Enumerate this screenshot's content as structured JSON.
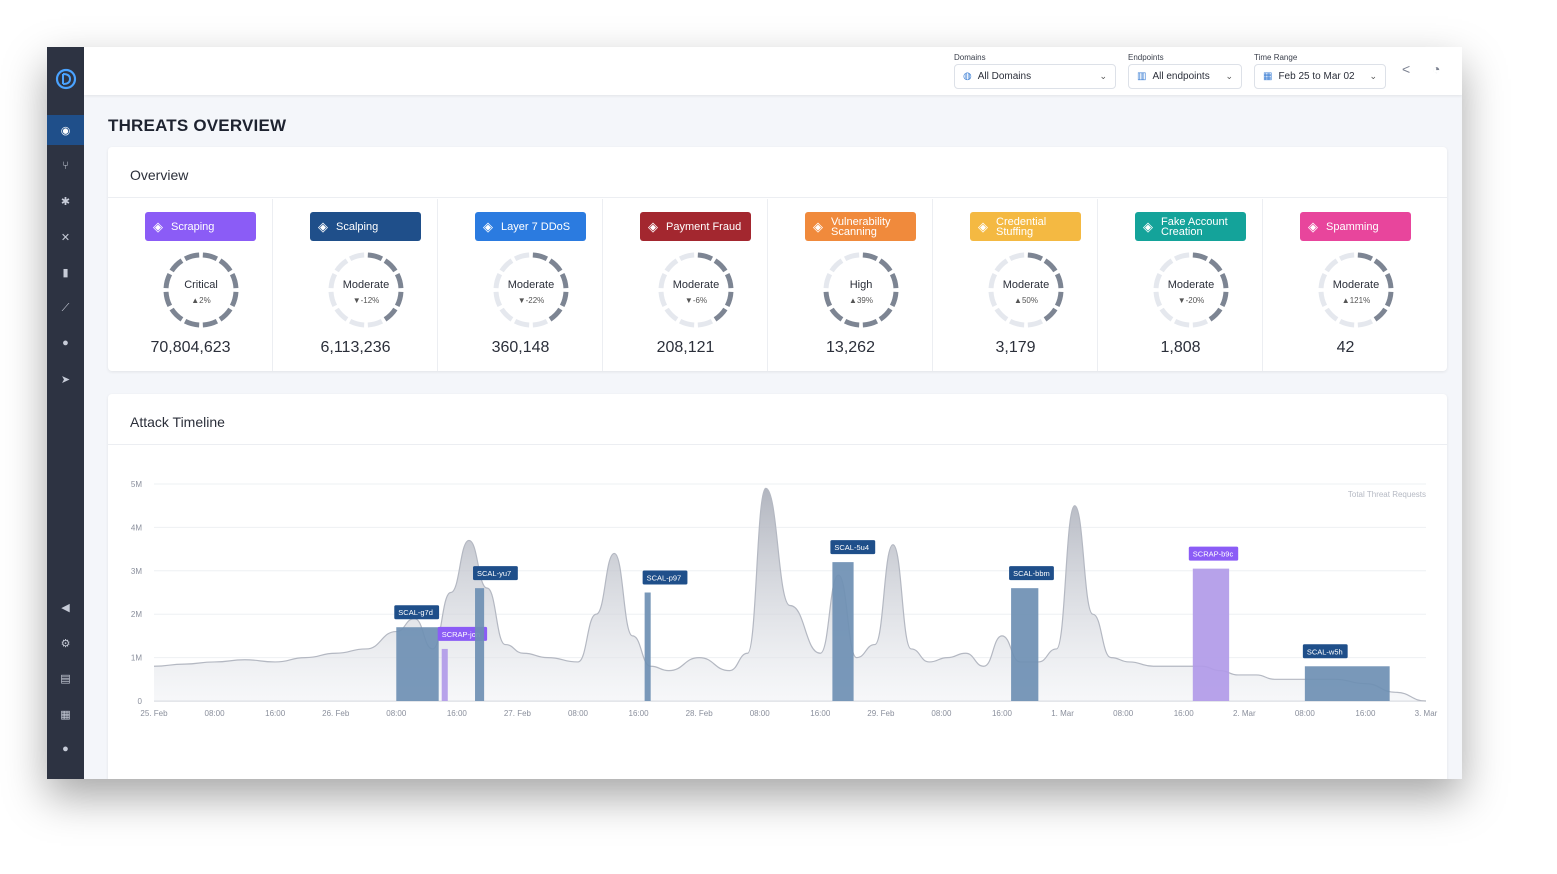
{
  "topbar": {
    "domains": {
      "label": "Domains",
      "value": "All Domains",
      "icon": "globe-icon"
    },
    "endpoints": {
      "label": "Endpoints",
      "value": "All endpoints",
      "icon": "endpoint-icon"
    },
    "time_range": {
      "label": "Time Range",
      "value": "Feb 25 to Mar 02",
      "icon": "calendar-icon"
    }
  },
  "page": {
    "title": "THREATS OVERVIEW"
  },
  "overview": {
    "title": "Overview",
    "threats": [
      {
        "name": "Scraping",
        "color": "#8b5cf6",
        "icon": "scraping-icon",
        "severity": "Critical",
        "change": "▲2%",
        "count": "70,804,623",
        "level": 1.0
      },
      {
        "name": "Scalping",
        "color": "#1f4f8a",
        "icon": "cart-icon",
        "severity": "Moderate",
        "change": "▼-12%",
        "count": "6,113,236",
        "level": 0.4
      },
      {
        "name": "Layer 7 DDoS",
        "color": "#2b7be0",
        "icon": "network-icon",
        "severity": "Moderate",
        "change": "▼-22%",
        "count": "360,148",
        "level": 0.4
      },
      {
        "name": "Payment Fraud",
        "color": "#a3272f",
        "icon": "wallet-icon",
        "severity": "Moderate",
        "change": "▼-6%",
        "count": "208,121",
        "level": 0.4
      },
      {
        "name": "Vulnerability Scanning",
        "color": "#f08a3c",
        "icon": "scan-icon",
        "severity": "High",
        "change": "▲39%",
        "count": "13,262",
        "level": 0.75
      },
      {
        "name": "Credential Stuffing",
        "color": "#f4b942",
        "icon": "lock-icon",
        "severity": "Moderate",
        "change": "▲50%",
        "count": "3,179",
        "level": 0.4
      },
      {
        "name": "Fake Account Creation",
        "color": "#14a39a",
        "icon": "users-icon",
        "severity": "Moderate",
        "change": "▼-20%",
        "count": "1,808",
        "level": 0.4
      },
      {
        "name": "Spamming",
        "color": "#e8459c",
        "icon": "mail-icon",
        "severity": "Moderate",
        "change": "▲121%",
        "count": "42",
        "level": 0.4
      }
    ]
  },
  "timeline": {
    "title": "Attack Timeline",
    "chart_data": {
      "type": "area",
      "title": "",
      "legend": "Total Threat Requests",
      "y_ticks": [
        "0",
        "1M",
        "2M",
        "3M",
        "4M",
        "5M"
      ],
      "ylim": [
        0,
        5
      ],
      "x_ticks": [
        "25. Feb",
        "08:00",
        "16:00",
        "26. Feb",
        "08:00",
        "16:00",
        "27. Feb",
        "08:00",
        "16:00",
        "28. Feb",
        "08:00",
        "16:00",
        "29. Feb",
        "08:00",
        "16:00",
        "1. Mar",
        "08:00",
        "16:00",
        "2. Mar",
        "08:00",
        "16:00",
        "3. Mar"
      ],
      "series_x": [
        0,
        0.5,
        1,
        1.5,
        2,
        2.5,
        3,
        3.5,
        4,
        4.3,
        4.6,
        4.9,
        5.2,
        5.5,
        5.8,
        6.1,
        6.5,
        7,
        7.3,
        7.6,
        7.9,
        8.2,
        8.5,
        9,
        9.5,
        9.8,
        10.1,
        10.5,
        11,
        11.3,
        11.6,
        11.9,
        12.2,
        12.5,
        12.8,
        13.1,
        13.4,
        13.7,
        14,
        14.3,
        14.6,
        14.9,
        15.2,
        15.5,
        15.8,
        16.1,
        16.5,
        17,
        17.3,
        17.6,
        17.9,
        18.2,
        18.5,
        19,
        19.5,
        20,
        20.5,
        21
      ],
      "series_y": [
        0.8,
        0.85,
        0.9,
        0.95,
        0.9,
        1.0,
        1.1,
        1.2,
        1.6,
        1.9,
        1.2,
        2.5,
        3.7,
        2.6,
        1.3,
        1.1,
        1.0,
        0.9,
        2.0,
        3.4,
        1.5,
        0.8,
        0.7,
        1.0,
        0.7,
        1.1,
        4.9,
        2.2,
        1.1,
        2.9,
        1.0,
        1.3,
        3.6,
        1.2,
        0.9,
        1.0,
        1.1,
        0.8,
        1.5,
        0.9,
        0.9,
        1.2,
        4.5,
        2.0,
        1.0,
        0.9,
        0.8,
        0.8,
        0.8,
        0.7,
        0.6,
        0.6,
        0.5,
        0.5,
        0.5,
        0.4,
        0.2,
        0
      ],
      "attacks": [
        {
          "label": "SCAL-g7d",
          "type": "scalping",
          "x0": 4.0,
          "x1": 4.7,
          "value": 1.7
        },
        {
          "label": "SCRAP-jon",
          "type": "scraping",
          "x0": 4.75,
          "x1": 4.85,
          "value": 1.2
        },
        {
          "label": "SCAL-yu7",
          "type": "scalping",
          "x0": 5.3,
          "x1": 5.45,
          "value": 2.6
        },
        {
          "label": "SCAL-p97",
          "type": "scalping",
          "x0": 8.1,
          "x1": 8.2,
          "value": 2.5
        },
        {
          "label": "SCAL-5u4",
          "type": "scalping",
          "x0": 11.2,
          "x1": 11.55,
          "value": 3.2
        },
        {
          "label": "SCAL-bbm",
          "type": "scalping",
          "x0": 14.15,
          "x1": 14.6,
          "value": 2.6
        },
        {
          "label": "SCRAP-b9c",
          "type": "scraping",
          "x0": 17.15,
          "x1": 17.75,
          "value": 3.05
        },
        {
          "label": "SCAL-w5h",
          "type": "scalping",
          "x0": 19.0,
          "x1": 20.4,
          "value": 0.8
        }
      ]
    }
  }
}
